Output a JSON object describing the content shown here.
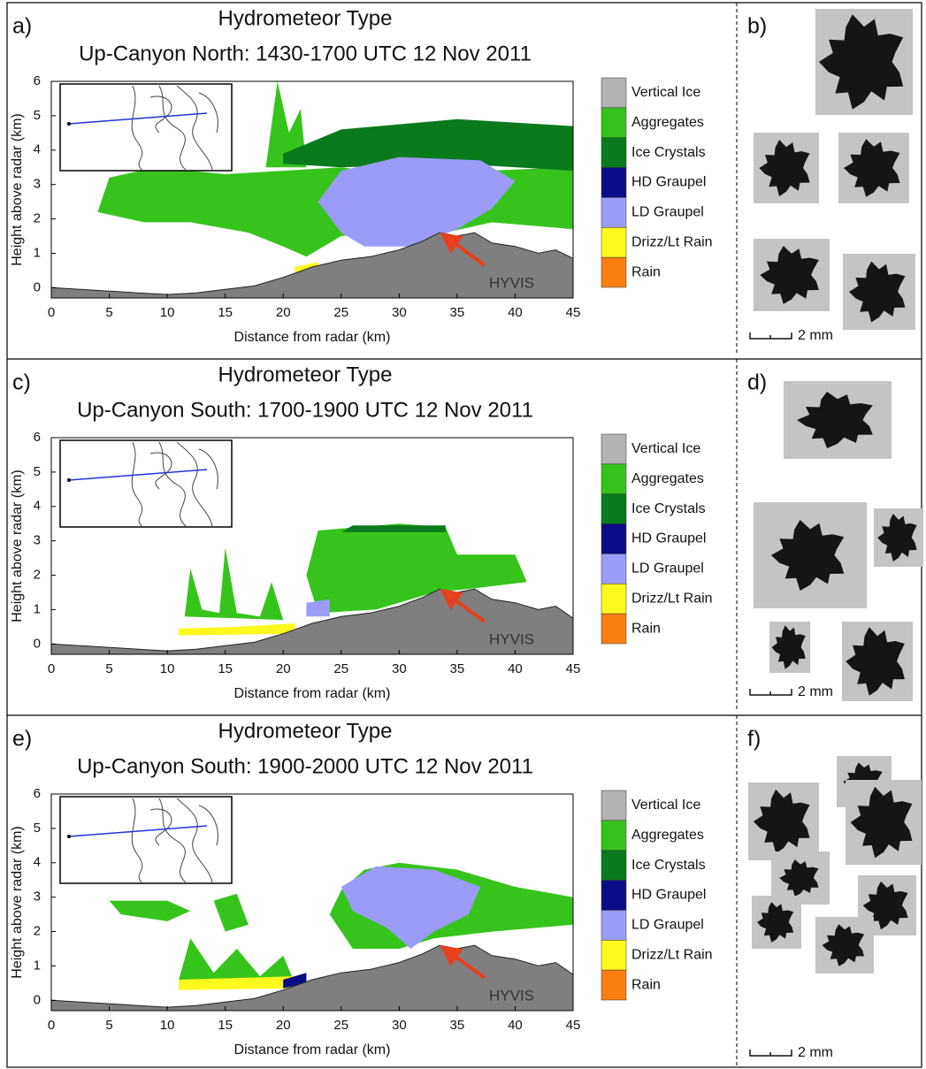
{
  "chart_data": [
    {
      "type": "area",
      "panel_label": "a)",
      "title": "Hydrometeor Type",
      "subtitle": "Up-Canyon North: 1430-1700 UTC 12 Nov 2011",
      "x_label": "Distance from radar (km)",
      "y_label": "Height above radar (km)",
      "xlim": [
        0,
        45
      ],
      "ylim": [
        -0.3,
        6
      ],
      "xticks": [
        0,
        5,
        10,
        15,
        20,
        25,
        30,
        35,
        40,
        45
      ],
      "yticks": [
        0,
        1,
        2,
        3,
        4,
        5,
        6
      ],
      "legend": [
        {
          "name": "Vertical Ice",
          "color": "#b3b3b3"
        },
        {
          "name": "Aggregates",
          "color": "#36c41c"
        },
        {
          "name": "Ice Crystals",
          "color": "#0b7a1c"
        },
        {
          "name": "HD Graupel",
          "color": "#0c0c86"
        },
        {
          "name": "LD Graupel",
          "color": "#9a9cf8"
        },
        {
          "name": "Drizz/Lt Rain",
          "color": "#fdf81e"
        },
        {
          "name": "Rain",
          "color": "#fb7f10"
        }
      ],
      "annotation": "HYVIS",
      "terrain": {
        "color": "#7f7f7f",
        "x": [
          0,
          2.5,
          5,
          7.5,
          10,
          12.5,
          15,
          17.5,
          20,
          22.5,
          25,
          27.5,
          30,
          32,
          33.5,
          35,
          36.5,
          38,
          40,
          42,
          43.5,
          45
        ],
        "values": [
          0,
          -0.05,
          -0.1,
          -0.15,
          -0.2,
          -0.15,
          -0.05,
          0.05,
          0.3,
          0.6,
          0.8,
          0.9,
          1.1,
          1.35,
          1.6,
          1.5,
          1.6,
          1.3,
          1.2,
          1.0,
          1.1,
          0.85
        ]
      }
    },
    {
      "type": "area",
      "panel_label": "c)",
      "title": "Hydrometeor Type",
      "subtitle": "Up-Canyon South: 1700-1900 UTC 12 Nov 2011",
      "x_label": "Distance from radar (km)",
      "y_label": "Height above radar (km)",
      "xlim": [
        0,
        45
      ],
      "ylim": [
        -0.3,
        6
      ],
      "xticks": [
        0,
        5,
        10,
        15,
        20,
        25,
        30,
        35,
        40,
        45
      ],
      "yticks": [
        0,
        1,
        2,
        3,
        4,
        5,
        6
      ],
      "legend": [
        {
          "name": "Vertical Ice",
          "color": "#b3b3b3"
        },
        {
          "name": "Aggregates",
          "color": "#36c41c"
        },
        {
          "name": "Ice Crystals",
          "color": "#0b7a1c"
        },
        {
          "name": "HD Graupel",
          "color": "#0c0c86"
        },
        {
          "name": "LD Graupel",
          "color": "#9a9cf8"
        },
        {
          "name": "Drizz/Lt Rain",
          "color": "#fdf81e"
        },
        {
          "name": "Rain",
          "color": "#fb7f10"
        }
      ],
      "annotation": "HYVIS",
      "terrain": {
        "color": "#7f7f7f",
        "x": [
          0,
          2.5,
          5,
          7.5,
          10,
          12.5,
          15,
          17.5,
          20,
          22.5,
          25,
          27.5,
          30,
          32,
          33.5,
          35,
          36.5,
          38,
          40,
          42,
          43.5,
          45
        ],
        "values": [
          0,
          -0.05,
          -0.1,
          -0.15,
          -0.2,
          -0.15,
          -0.05,
          0.05,
          0.3,
          0.6,
          0.8,
          0.9,
          1.1,
          1.35,
          1.6,
          1.5,
          1.6,
          1.3,
          1.2,
          1.0,
          1.1,
          0.75
        ]
      }
    },
    {
      "type": "area",
      "panel_label": "e)",
      "title": "Hydrometeor Type",
      "subtitle": "Up-Canyon South: 1900-2000 UTC 12 Nov 2011",
      "x_label": "Distance from radar (km)",
      "y_label": "Height above radar (km)",
      "xlim": [
        0,
        45
      ],
      "ylim": [
        -0.3,
        6
      ],
      "xticks": [
        0,
        5,
        10,
        15,
        20,
        25,
        30,
        35,
        40,
        45
      ],
      "yticks": [
        0,
        1,
        2,
        3,
        4,
        5,
        6
      ],
      "legend": [
        {
          "name": "Vertical Ice",
          "color": "#b3b3b3"
        },
        {
          "name": "Aggregates",
          "color": "#36c41c"
        },
        {
          "name": "Ice Crystals",
          "color": "#0b7a1c"
        },
        {
          "name": "HD Graupel",
          "color": "#0c0c86"
        },
        {
          "name": "LD Graupel",
          "color": "#9a9cf8"
        },
        {
          "name": "Drizz/Lt Rain",
          "color": "#fdf81e"
        },
        {
          "name": "Rain",
          "color": "#fb7f10"
        }
      ],
      "annotation": "HYVIS",
      "terrain": {
        "color": "#7f7f7f",
        "x": [
          0,
          2.5,
          5,
          7.5,
          10,
          12.5,
          15,
          17.5,
          20,
          22.5,
          25,
          27.5,
          30,
          32,
          33.5,
          35,
          36.5,
          38,
          40,
          42,
          43.5,
          45
        ],
        "values": [
          0,
          -0.05,
          -0.1,
          -0.15,
          -0.2,
          -0.15,
          -0.05,
          0.05,
          0.3,
          0.6,
          0.8,
          0.9,
          1.1,
          1.35,
          1.6,
          1.5,
          1.6,
          1.3,
          1.2,
          1.0,
          1.1,
          0.75
        ]
      }
    }
  ],
  "images": [
    {
      "panel_label": "b)",
      "scale_label": "2 mm"
    },
    {
      "panel_label": "d)",
      "scale_label": "2 mm"
    },
    {
      "panel_label": "f)",
      "scale_label": "2 mm"
    }
  ]
}
